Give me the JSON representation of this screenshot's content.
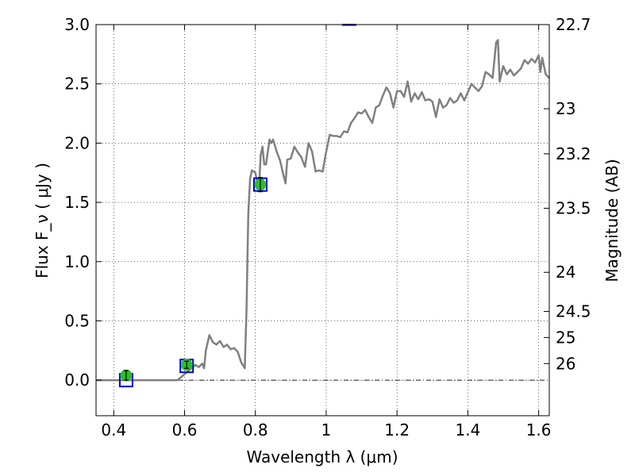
{
  "chart_data": {
    "type": "line",
    "xlabel": "Wavelength  λ (μm)",
    "ylabel": "Flux  F_ν  ( μJy )",
    "ylabel_right": "Magnitude (AB)",
    "xlim": [
      0.35,
      1.63
    ],
    "ylim": [
      -0.3,
      3.0
    ],
    "grid": true,
    "x_ticks": [
      {
        "value": 0.4,
        "label": "0.4"
      },
      {
        "value": 0.6,
        "label": "0.6"
      },
      {
        "value": 0.8,
        "label": "0.8"
      },
      {
        "value": 1.0,
        "label": "1"
      },
      {
        "value": 1.2,
        "label": "1.2"
      },
      {
        "value": 1.4,
        "label": "1.4"
      },
      {
        "value": 1.6,
        "label": "1.6"
      }
    ],
    "y_ticks": [
      {
        "value": 0.0,
        "label": "0.0"
      },
      {
        "value": 0.5,
        "label": "0.5"
      },
      {
        "value": 1.0,
        "label": "1.0"
      },
      {
        "value": 1.5,
        "label": "1.5"
      },
      {
        "value": 2.0,
        "label": "2.0"
      },
      {
        "value": 2.5,
        "label": "2.5"
      },
      {
        "value": 3.0,
        "label": "3.0"
      }
    ],
    "mag_ticks": [
      {
        "flux": 3.0,
        "label": "22.7"
      },
      {
        "flux": 2.29,
        "label": "23"
      },
      {
        "flux": 1.91,
        "label": "23.2"
      },
      {
        "flux": 1.45,
        "label": "23.5"
      },
      {
        "flux": 0.91,
        "label": "24"
      },
      {
        "flux": 0.58,
        "label": "24.5"
      },
      {
        "flux": 0.36,
        "label": "25"
      },
      {
        "flux": 0.14,
        "label": "26"
      }
    ],
    "series": [
      {
        "kind": "model-spectrum",
        "color": "#808080",
        "x": [
          0.35,
          0.4,
          0.45,
          0.5,
          0.55,
          0.58,
          0.6,
          0.62,
          0.63,
          0.64,
          0.65,
          0.655,
          0.66,
          0.67,
          0.68,
          0.69,
          0.7,
          0.71,
          0.72,
          0.73,
          0.74,
          0.75,
          0.76,
          0.77,
          0.775,
          0.78,
          0.785,
          0.79,
          0.8,
          0.81,
          0.815,
          0.82,
          0.825,
          0.83,
          0.84,
          0.845,
          0.85,
          0.86,
          0.87,
          0.88,
          0.885,
          0.89,
          0.9,
          0.91,
          0.92,
          0.93,
          0.94,
          0.95,
          0.96,
          0.97,
          0.98,
          0.99,
          1.0,
          1.01,
          1.02,
          1.03,
          1.04,
          1.05,
          1.06,
          1.07,
          1.08,
          1.09,
          1.1,
          1.11,
          1.12,
          1.13,
          1.14,
          1.15,
          1.16,
          1.17,
          1.18,
          1.19,
          1.2,
          1.21,
          1.22,
          1.23,
          1.24,
          1.25,
          1.26,
          1.27,
          1.28,
          1.29,
          1.3,
          1.31,
          1.32,
          1.33,
          1.34,
          1.35,
          1.36,
          1.37,
          1.38,
          1.39,
          1.4,
          1.41,
          1.42,
          1.43,
          1.44,
          1.45,
          1.46,
          1.47,
          1.48,
          1.485,
          1.49,
          1.5,
          1.51,
          1.52,
          1.53,
          1.54,
          1.55,
          1.56,
          1.57,
          1.58,
          1.59,
          1.6,
          1.605,
          1.61,
          1.62,
          1.63
        ],
        "y": [
          0.0,
          0.0,
          0.0,
          0.0,
          0.0,
          0.0,
          0.05,
          0.1,
          0.13,
          0.11,
          0.14,
          0.1,
          0.25,
          0.38,
          0.32,
          0.3,
          0.33,
          0.28,
          0.3,
          0.26,
          0.27,
          0.24,
          0.15,
          0.1,
          0.6,
          1.4,
          1.7,
          1.77,
          1.75,
          1.6,
          1.9,
          1.97,
          1.82,
          1.82,
          2.03,
          2.0,
          2.03,
          1.93,
          1.85,
          1.72,
          1.66,
          1.86,
          1.87,
          1.97,
          1.92,
          1.88,
          1.8,
          2.0,
          1.93,
          1.76,
          1.77,
          1.76,
          1.93,
          2.07,
          2.06,
          2.06,
          2.05,
          2.1,
          2.09,
          2.17,
          2.21,
          2.26,
          2.25,
          2.28,
          2.22,
          2.17,
          2.3,
          2.32,
          2.4,
          2.47,
          2.42,
          2.3,
          2.44,
          2.44,
          2.39,
          2.52,
          2.35,
          2.42,
          2.37,
          2.43,
          2.36,
          2.37,
          2.35,
          2.22,
          2.37,
          2.3,
          2.32,
          2.38,
          2.34,
          2.36,
          2.42,
          2.36,
          2.43,
          2.5,
          2.47,
          2.44,
          2.48,
          2.6,
          2.58,
          2.55,
          2.85,
          2.87,
          2.52,
          2.65,
          2.58,
          2.62,
          2.57,
          2.6,
          2.63,
          2.7,
          2.67,
          2.71,
          2.68,
          2.74,
          2.6,
          2.72,
          2.58,
          2.55
        ]
      },
      {
        "kind": "observed-photometry",
        "color": "#2bbf2b",
        "points": [
          {
            "x": 0.435,
            "y": 0.04,
            "err": 0.04
          },
          {
            "x": 0.606,
            "y": 0.13,
            "err": 0.03
          },
          {
            "x": 0.814,
            "y": 1.65,
            "err": 0.06
          }
        ]
      },
      {
        "kind": "model-photometry",
        "color": "#0000cc",
        "points": [
          {
            "x": 0.435,
            "y": 0.0
          },
          {
            "x": 0.606,
            "y": 0.12
          },
          {
            "x": 0.814,
            "y": 1.65
          },
          {
            "x": 1.065,
            "y": 3.05
          }
        ]
      }
    ]
  }
}
